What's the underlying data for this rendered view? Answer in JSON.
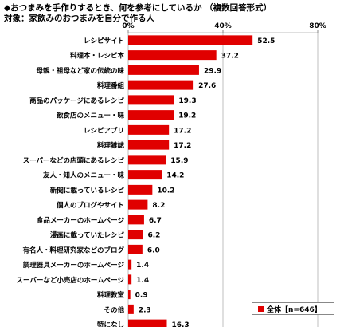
{
  "header": {
    "title": "◆おつまみを手作りするとき、何を参考にしているか （複数回答形式）",
    "subtitle": "対象：家飲みのおつまみを自分で作る人"
  },
  "chart_data": {
    "type": "bar",
    "orientation": "horizontal",
    "categories": [
      "レシピサイト",
      "料理本・レシピ本",
      "母親・祖母など家の伝統の味",
      "料理番組",
      "商品のパッケージにあるレシピ",
      "飲食店のメニュー・味",
      "レシピアプリ",
      "料理雑誌",
      "スーパーなどの店頭にあるレシピ",
      "友人・知人のメニュー・味",
      "新聞に載っているレシピ",
      "個人のブログやサイト",
      "食品メーカーのホームページ",
      "漫画に載っていたレシピ",
      "有名人・料理研究家などのブログ",
      "調理器具メーカーのホームページ",
      "スーパーなど小売店のホームページ",
      "料理教室",
      "その他",
      "特になし"
    ],
    "series": [
      {
        "name": "全体【n=646】",
        "values": [
          52.5,
          37.2,
          29.9,
          27.6,
          19.3,
          19.2,
          17.2,
          17.2,
          15.9,
          14.2,
          10.2,
          8.2,
          6.7,
          6.2,
          6.0,
          1.4,
          1.4,
          0.9,
          2.3,
          16.3
        ],
        "labels": [
          "52.5",
          "37.2",
          "29.9",
          "27.6",
          "19.3",
          "19.2",
          "17.2",
          "17.2",
          "15.9",
          "14.2",
          "10.2",
          "8.2",
          "6.7",
          "6.2",
          "6.0",
          "1.4",
          "1.4",
          "0.9",
          "2.3",
          "16.3"
        ]
      }
    ],
    "xlim": [
      0,
      80
    ],
    "xticks": [
      "0%",
      "40%",
      "80%"
    ],
    "bar_color": "#e00000",
    "grid": true,
    "legend": "bottom-right"
  }
}
